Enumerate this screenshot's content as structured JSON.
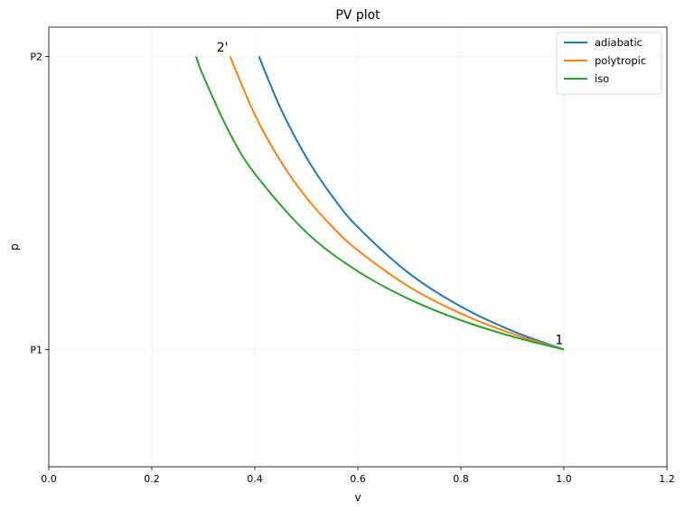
{
  "chart_data": {
    "type": "line",
    "title": "PV plot",
    "xlabel": "v",
    "ylabel": "p",
    "xlim": [
      0,
      1.2
    ],
    "ylim": [
      0,
      3.75
    ],
    "xticks": [
      {
        "value": 0,
        "label": "0.0"
      },
      0.2,
      0.4,
      0.6,
      0.8,
      {
        "value": 1,
        "label": "1.0"
      },
      1.2
    ],
    "yticks": [
      {
        "value": 1,
        "label": "P1"
      },
      {
        "value": 3.5,
        "label": "P2"
      }
    ],
    "grid": true,
    "legend": "upper right",
    "series": [
      {
        "name": "adiabatic",
        "color": "#1f77b4",
        "x": [
          0.408,
          0.45,
          0.5,
          0.55,
          0.6,
          0.7,
          0.8,
          0.9,
          1.0
        ],
        "values": [
          3.5,
          3.058,
          2.639,
          2.309,
          2.044,
          1.648,
          1.367,
          1.159,
          1.0
        ]
      },
      {
        "name": "polytropic",
        "color": "#ff7f0e",
        "x": [
          0.352,
          0.4,
          0.45,
          0.5,
          0.55,
          0.6,
          0.7,
          0.8,
          0.9,
          1.0
        ],
        "values": [
          3.5,
          3.003,
          2.607,
          2.297,
          2.049,
          1.846,
          1.534,
          1.307,
          1.135,
          1.0
        ]
      },
      {
        "name": "iso",
        "color": "#2ca02c",
        "x": [
          0.286,
          0.3,
          0.35,
          0.4,
          0.5,
          0.6,
          0.7,
          0.8,
          0.9,
          1.0
        ],
        "values": [
          3.5,
          3.333,
          2.857,
          2.5,
          2.0,
          1.667,
          1.429,
          1.25,
          1.111,
          1.0
        ]
      }
    ],
    "annotations": [
      {
        "text": "2'",
        "x": 0.337,
        "y": 3.58
      },
      {
        "text": "1",
        "x": 0.991,
        "y": 1.085
      }
    ]
  }
}
